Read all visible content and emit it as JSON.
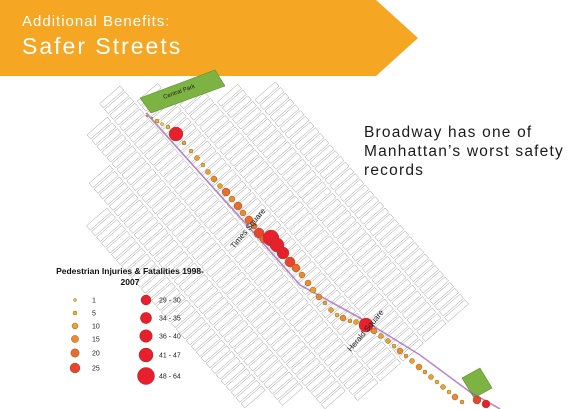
{
  "banner": {
    "kicker": "Additional Benefits:",
    "title": "Safer Streets",
    "color": "#f5a623"
  },
  "headline": "Broadway has one of Manhattan’s worst safety records",
  "map": {
    "park_labels": [
      "Central Park"
    ],
    "place_labels": [
      "Times Square",
      "Herald Square"
    ],
    "park_color": "#7cb342",
    "broadway_color": "#9b59b6"
  },
  "legend": {
    "title": "Pedestrian Injuries & Fatalities 1998-2007",
    "classes_left": [
      {
        "label": "1",
        "color": "#e3c83a"
      },
      {
        "label": "5",
        "color": "#e5b734"
      },
      {
        "label": "10",
        "color": "#eba12e"
      },
      {
        "label": "15",
        "color": "#ed8a2a"
      },
      {
        "label": "20",
        "color": "#ec6a2a"
      },
      {
        "label": "25",
        "color": "#e9452e"
      }
    ],
    "classes_right": [
      {
        "label": "29 - 30",
        "color": "#e8202d"
      },
      {
        "label": "34 - 35",
        "color": "#e8202d"
      },
      {
        "label": "36 - 40",
        "color": "#e8202d"
      },
      {
        "label": "41 - 47",
        "color": "#e8202d"
      },
      {
        "label": "48 - 64",
        "color": "#e8202d"
      }
    ]
  }
}
